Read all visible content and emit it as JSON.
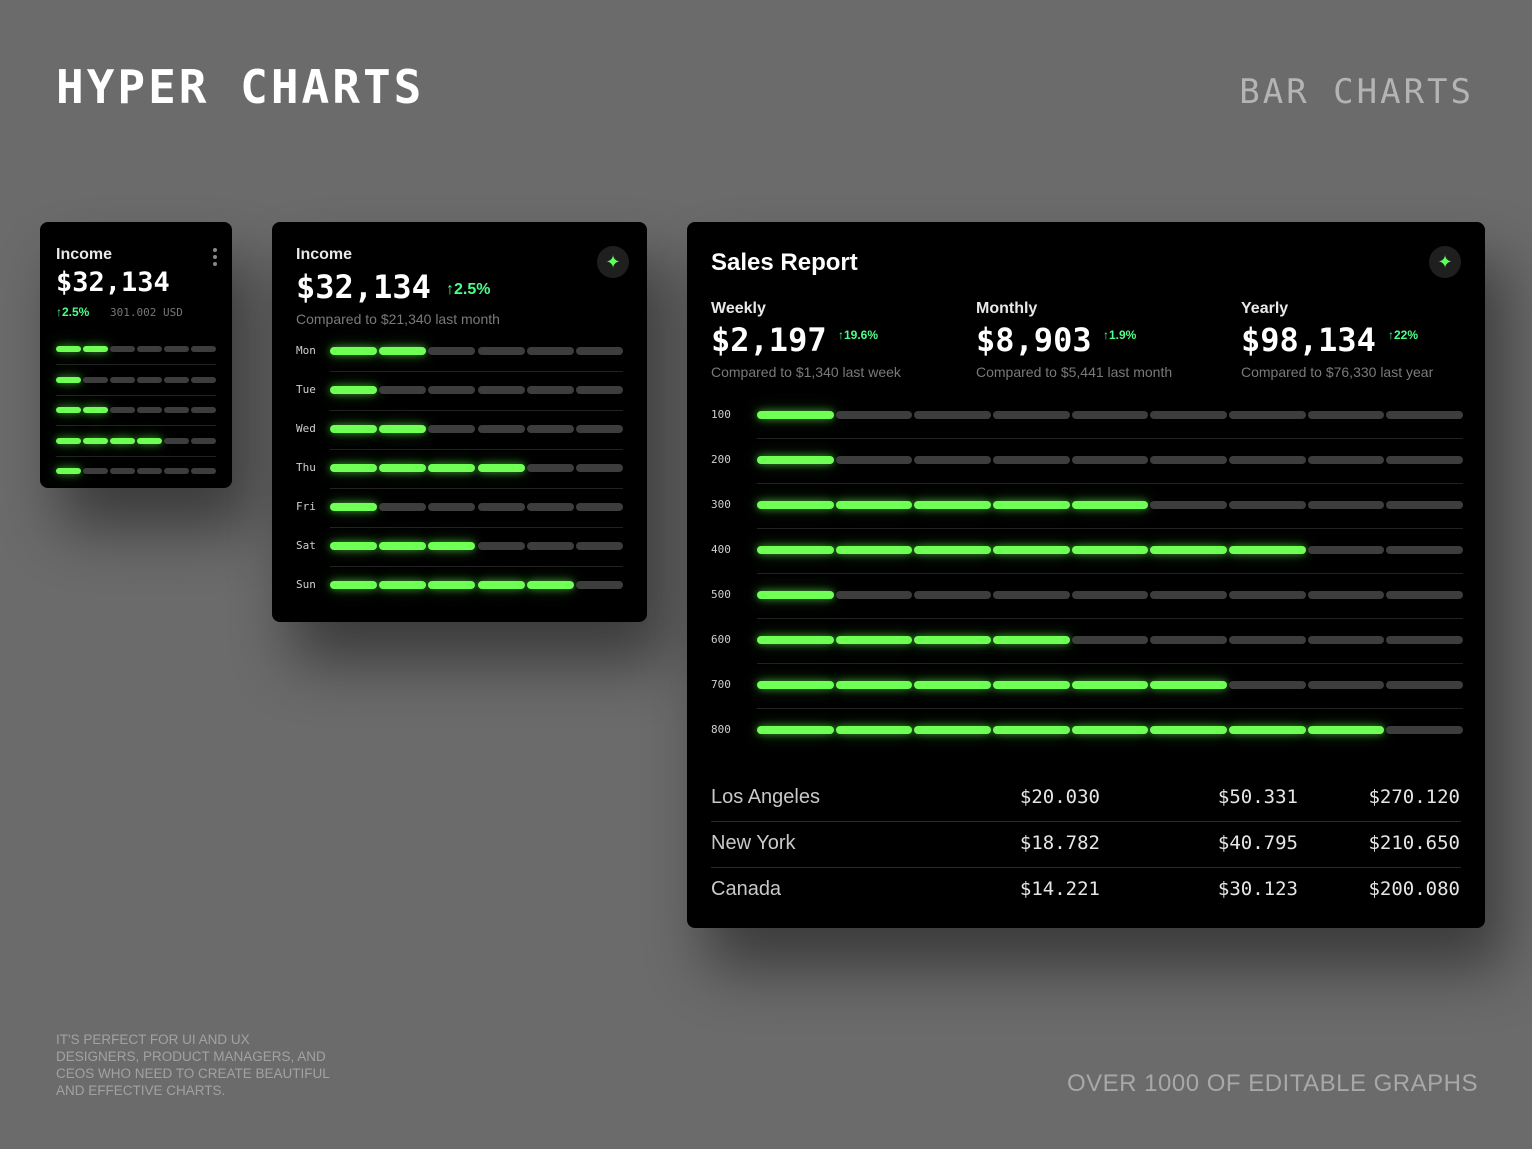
{
  "header": {
    "brand": "HYPER CHARTS",
    "section": "BAR CHARTS"
  },
  "footer": {
    "left": "IT'S PERFECT FOR UI AND UX DESIGNERS, PRODUCT MANAGERS, AND CEOS WHO NEED TO CREATE BEAUTIFUL AND EFFECTIVE CHARTS.",
    "right": "OVER 1000 OF EDITABLE GRAPHS"
  },
  "icons": {
    "menu": "more-vertical-icon",
    "sparkle": "sparkle-icon",
    "arrow": "arrow-up-icon"
  },
  "colors": {
    "accent": "#6fff55",
    "change": "#4dff8a",
    "inactive": "#3d3d3d",
    "background": "#6b6b6b",
    "card": "#000000"
  },
  "card_small": {
    "label": "Income",
    "value": "$32,134",
    "change": "↑2.5%",
    "sub": "301.002 USD"
  },
  "card_medium": {
    "label": "Income",
    "value": "$32,134",
    "change": "↑2.5%",
    "sub": "Compared to $21,340 last month"
  },
  "card_sales": {
    "title": "Sales Report",
    "stats": [
      {
        "label": "Weekly",
        "value": "$2,197",
        "change": "↑19.6%",
        "sub": "Compared to $1,340 last week"
      },
      {
        "label": "Monthly",
        "value": "$8,903",
        "change": "↑1.9%",
        "sub": "Compared to $5,441 last month"
      },
      {
        "label": "Yearly",
        "value": "$98,134",
        "change": "↑22%",
        "sub": "Compared to $76,330 last year"
      }
    ],
    "table": [
      {
        "city": "Los Angeles",
        "v1": "$20.030",
        "v2": "$50.331",
        "v3": "$270.120"
      },
      {
        "city": "New York",
        "v1": "$18.782",
        "v2": "$40.795",
        "v3": "$210.650"
      },
      {
        "city": "Canada",
        "v1": "$14.221",
        "v2": "$30.123",
        "v3": "$200.080"
      }
    ]
  },
  "chart_data": [
    {
      "type": "bar",
      "segments_total": 6,
      "categories": [
        "",
        "",
        "",
        "",
        ""
      ],
      "values": [
        2,
        1,
        2,
        4,
        1
      ]
    },
    {
      "type": "bar",
      "segments_total": 6,
      "categories": [
        "Mon",
        "Tue",
        "Wed",
        "Thu",
        "Fri",
        "Sat",
        "Sun"
      ],
      "values": [
        2,
        1,
        2,
        4,
        1,
        3,
        5
      ]
    },
    {
      "type": "bar",
      "segments_total": 9,
      "categories": [
        "100",
        "200",
        "300",
        "400",
        "500",
        "600",
        "700",
        "800"
      ],
      "values": [
        1,
        1,
        5,
        7,
        1,
        4,
        6,
        8
      ]
    }
  ]
}
